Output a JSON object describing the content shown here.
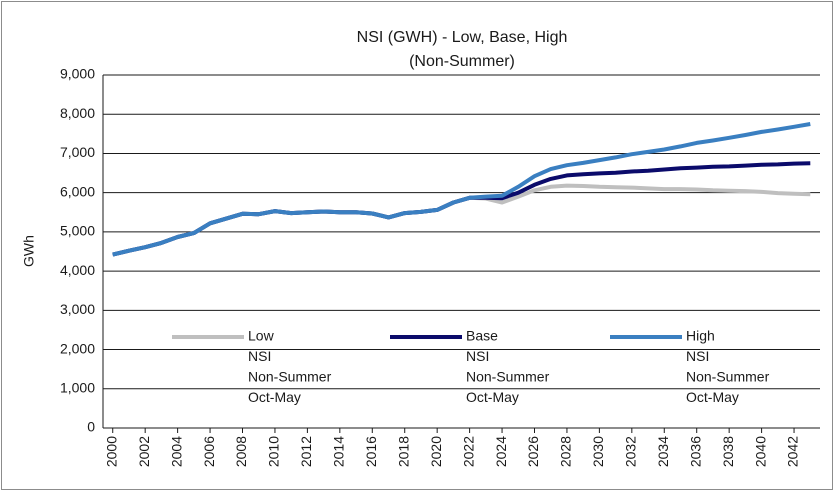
{
  "chart_data": {
    "type": "line",
    "title": "NSI (GWH) - Low, Base, High",
    "subtitle": "(Non-Summer)",
    "y_label": "GWh",
    "x": [
      2000,
      2001,
      2002,
      2003,
      2004,
      2005,
      2006,
      2007,
      2008,
      2009,
      2010,
      2011,
      2012,
      2013,
      2014,
      2015,
      2016,
      2017,
      2018,
      2019,
      2020,
      2021,
      2022,
      2023,
      2024,
      2025,
      2026,
      2027,
      2028,
      2029,
      2030,
      2031,
      2032,
      2033,
      2034,
      2035,
      2036,
      2037,
      2038,
      2039,
      2040,
      2041,
      2042,
      2043
    ],
    "xlim": [
      1999.4,
      2043.6
    ],
    "xticks": [
      2000,
      2002,
      2004,
      2006,
      2008,
      2010,
      2012,
      2014,
      2016,
      2018,
      2020,
      2022,
      2024,
      2026,
      2028,
      2030,
      2032,
      2034,
      2036,
      2038,
      2040,
      2042
    ],
    "ylim": [
      0,
      9000
    ],
    "yticks": [
      0,
      {
        "value": 1000,
        "label": "1,000"
      },
      {
        "value": 2000,
        "label": "2,000"
      },
      {
        "value": 3000,
        "label": "3,000"
      },
      {
        "value": 4000,
        "label": "4,000"
      },
      {
        "value": 5000,
        "label": "5,000"
      },
      {
        "value": 6000,
        "label": "6,000"
      },
      {
        "value": 7000,
        "label": "7,000"
      },
      {
        "value": 8000,
        "label": "8,000"
      },
      {
        "value": 9000,
        "label": "9,000"
      }
    ],
    "grid": true,
    "series": [
      {
        "name": [
          "Low",
          "NSI",
          "Non-Summer",
          "Oct-May"
        ],
        "color": "#bfbfbf",
        "values": [
          4420,
          4520,
          4610,
          4720,
          4870,
          4970,
          5220,
          5340,
          5460,
          5450,
          5530,
          5480,
          5500,
          5520,
          5500,
          5500,
          5470,
          5370,
          5480,
          5510,
          5560,
          5750,
          5870,
          5850,
          5750,
          5900,
          6060,
          6150,
          6180,
          6170,
          6150,
          6140,
          6130,
          6110,
          6090,
          6090,
          6080,
          6060,
          6050,
          6040,
          6020,
          5990,
          5970,
          5960
        ]
      },
      {
        "name": [
          "Base",
          "NSI",
          "Non-Summer",
          "Oct-May"
        ],
        "color": "#0b0b6b",
        "values": [
          4420,
          4520,
          4610,
          4720,
          4870,
          4970,
          5220,
          5340,
          5460,
          5450,
          5530,
          5480,
          5500,
          5520,
          5500,
          5500,
          5470,
          5370,
          5480,
          5510,
          5560,
          5750,
          5870,
          5870,
          5860,
          6000,
          6200,
          6350,
          6440,
          6470,
          6490,
          6510,
          6540,
          6560,
          6590,
          6620,
          6640,
          6660,
          6670,
          6690,
          6710,
          6720,
          6740,
          6750
        ]
      },
      {
        "name": [
          "High",
          "NSI",
          "Non-Summer",
          "Oct-May"
        ],
        "color": "#3a7fc1",
        "values": [
          4420,
          4520,
          4610,
          4720,
          4870,
          4970,
          5220,
          5340,
          5460,
          5450,
          5530,
          5480,
          5500,
          5520,
          5500,
          5500,
          5470,
          5370,
          5480,
          5510,
          5560,
          5750,
          5870,
          5900,
          5920,
          6150,
          6420,
          6600,
          6700,
          6760,
          6830,
          6900,
          6980,
          7040,
          7100,
          7180,
          7270,
          7330,
          7400,
          7470,
          7550,
          7610,
          7680,
          7750
        ]
      }
    ]
  }
}
